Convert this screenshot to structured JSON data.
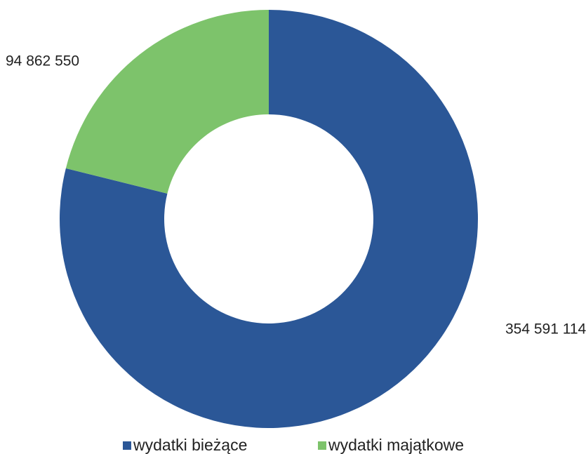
{
  "chart_data": {
    "type": "donut",
    "categories": [
      "wydatki bieżące",
      "wydatki majątkowe"
    ],
    "values": [
      354591114,
      94862550
    ],
    "value_labels": [
      "354 591 114",
      "94 862 550"
    ],
    "colors": [
      "#2b5797",
      "#7dc36b"
    ],
    "legend": "bottom"
  }
}
